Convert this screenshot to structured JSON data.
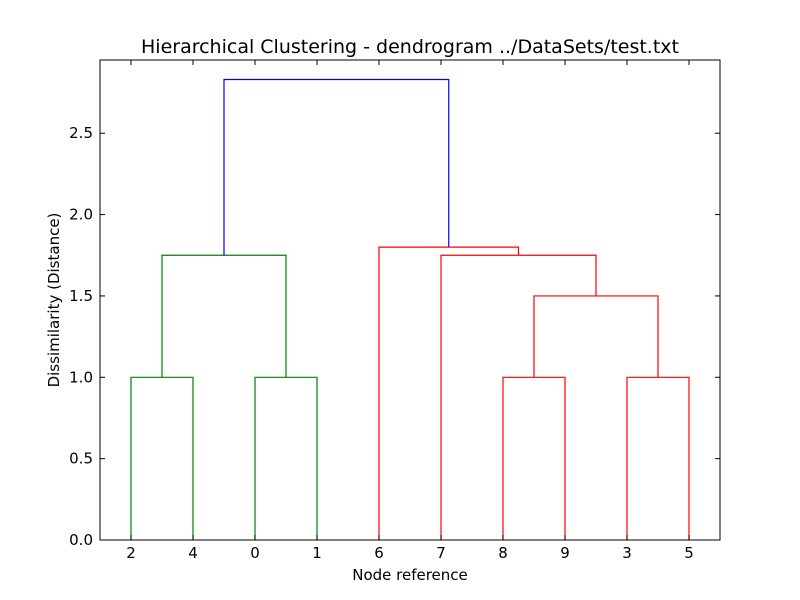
{
  "chart_data": {
    "type": "dendrogram",
    "title": "Hierarchical Clustering - dendrogram ../DataSets/test.txt",
    "xlabel": "Node reference",
    "ylabel": "Dissimilarity (Distance)",
    "leaf_labels": [
      "2",
      "4",
      "0",
      "1",
      "6",
      "7",
      "8",
      "9",
      "3",
      "5"
    ],
    "ylim": [
      0,
      2.95
    ],
    "yticks": [
      0.0,
      0.5,
      1.0,
      1.5,
      2.0,
      2.5
    ],
    "ytick_labels": [
      "0.0",
      "0.5",
      "1.0",
      "1.5",
      "2.0",
      "2.5"
    ],
    "grid": false,
    "links": [
      {
        "id": "a",
        "left": "2",
        "right": "4",
        "height": 1.0,
        "color": "#008000"
      },
      {
        "id": "b",
        "left": "0",
        "right": "1",
        "height": 1.0,
        "color": "#008000"
      },
      {
        "id": "c",
        "left": "a",
        "right": "b",
        "height": 1.75,
        "color": "#008000"
      },
      {
        "id": "d",
        "left": "8",
        "right": "9",
        "height": 1.0,
        "color": "#ff0000"
      },
      {
        "id": "e",
        "left": "3",
        "right": "5",
        "height": 1.0,
        "color": "#ff0000"
      },
      {
        "id": "f",
        "left": "d",
        "right": "e",
        "height": 1.5,
        "color": "#ff0000"
      },
      {
        "id": "g",
        "left": "7",
        "right": "f",
        "height": 1.75,
        "color": "#ff0000"
      },
      {
        "id": "h",
        "left": "6",
        "right": "g",
        "height": 1.8,
        "color": "#ff0000"
      },
      {
        "id": "i",
        "left": "c",
        "right": "h",
        "height": 2.83,
        "color": "#0000ff"
      }
    ]
  }
}
